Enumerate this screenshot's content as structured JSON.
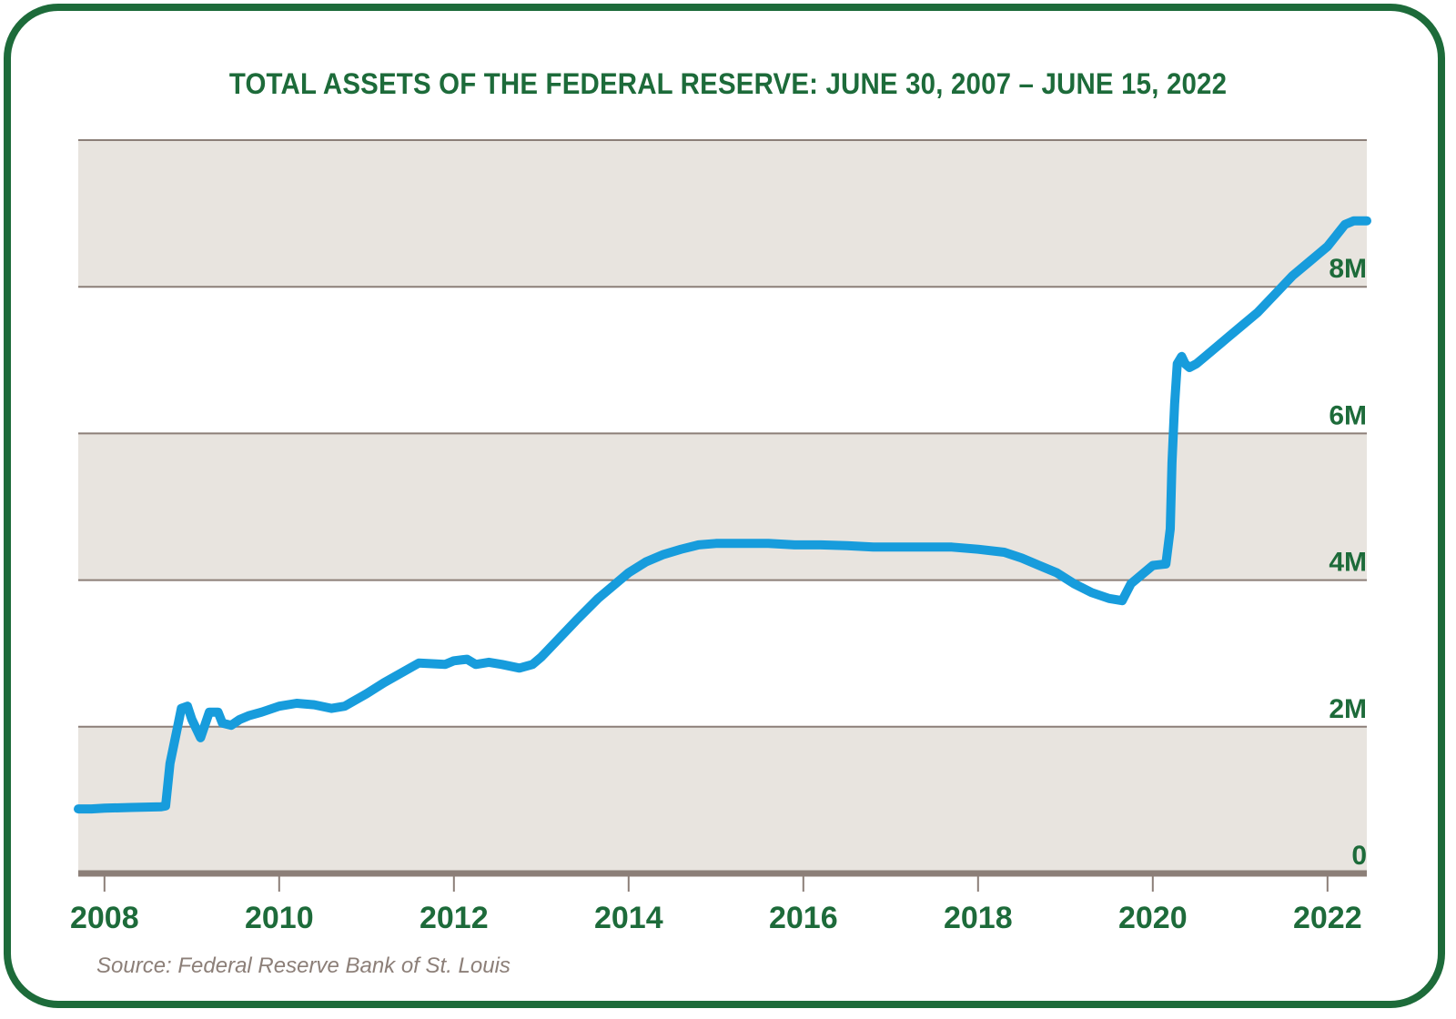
{
  "chart_data": {
    "type": "line",
    "title": "TOTAL ASSETS OF THE FEDERAL RESERVE: JUNE 30, 2007 – JUNE 15, 2022",
    "xlabel": "",
    "ylabel": "",
    "xlim": [
      2007.7,
      2022.45
    ],
    "ylim": [
      0,
      10
    ],
    "y_ticks": [
      0,
      2,
      4,
      6,
      8
    ],
    "y_tick_labels": [
      "0",
      "2M",
      "4M",
      "6M",
      "8M"
    ],
    "x_ticks": [
      2008,
      2010,
      2012,
      2014,
      2016,
      2018,
      2020,
      2022
    ],
    "x_tick_labels": [
      "2008",
      "2010",
      "2012",
      "2014",
      "2016",
      "2018",
      "2020",
      "2022"
    ],
    "grid": true,
    "legend": "none",
    "colors": {
      "line": "#179cdc",
      "band_shaded": "#e8e4df",
      "band_white": "#ffffff",
      "gridline": "#8c7f78",
      "text": "#1d6b3a",
      "frame": "#1d6b3a",
      "source": "#8c7f78"
    },
    "series": [
      {
        "x": [
          2007.7,
          2007.85,
          2008.0,
          2008.3,
          2008.65,
          2008.7,
          2008.75,
          2008.82,
          2008.88,
          2008.95,
          2009.0,
          2009.1,
          2009.2,
          2009.3,
          2009.35,
          2009.45,
          2009.55,
          2009.65,
          2009.8,
          2010.0,
          2010.2,
          2010.4,
          2010.6,
          2010.75,
          2011.0,
          2011.2,
          2011.6,
          2011.75,
          2011.9,
          2012.0,
          2012.15,
          2012.25,
          2012.4,
          2012.55,
          2012.75,
          2012.9,
          2013.0,
          2013.2,
          2013.4,
          2013.65,
          2013.8,
          2014.0,
          2014.2,
          2014.4,
          2014.6,
          2014.8,
          2015.0,
          2015.3,
          2015.6,
          2015.9,
          2016.2,
          2016.5,
          2016.8,
          2017.1,
          2017.4,
          2017.7,
          2018.0,
          2018.3,
          2018.5,
          2018.7,
          2018.9,
          2019.1,
          2019.3,
          2019.5,
          2019.65,
          2019.75,
          2019.95,
          2020.0,
          2020.15,
          2020.2,
          2020.22,
          2020.25,
          2020.28,
          2020.33,
          2020.37,
          2020.42,
          2020.5,
          2020.6,
          2020.75,
          2020.85,
          2021.0,
          2021.2,
          2021.4,
          2021.6,
          2021.8,
          2021.9,
          2022.0,
          2022.1,
          2022.2,
          2022.3,
          2022.45
        ],
        "y": [
          0.88,
          0.88,
          0.89,
          0.9,
          0.91,
          0.92,
          1.5,
          1.9,
          2.25,
          2.28,
          2.1,
          1.85,
          2.2,
          2.2,
          2.05,
          2.02,
          2.1,
          2.15,
          2.2,
          2.28,
          2.32,
          2.3,
          2.25,
          2.28,
          2.45,
          2.6,
          2.87,
          2.86,
          2.85,
          2.9,
          2.92,
          2.85,
          2.88,
          2.85,
          2.8,
          2.85,
          2.95,
          3.2,
          3.45,
          3.75,
          3.9,
          4.1,
          4.25,
          4.35,
          4.42,
          4.48,
          4.5,
          4.5,
          4.5,
          4.48,
          4.48,
          4.47,
          4.45,
          4.45,
          4.45,
          4.45,
          4.42,
          4.38,
          4.3,
          4.2,
          4.1,
          3.95,
          3.83,
          3.75,
          3.72,
          3.95,
          4.15,
          4.2,
          4.22,
          4.7,
          5.6,
          6.4,
          6.95,
          7.05,
          6.95,
          6.9,
          6.95,
          7.05,
          7.2,
          7.3,
          7.45,
          7.65,
          7.9,
          8.15,
          8.35,
          8.45,
          8.55,
          8.7,
          8.85,
          8.9,
          8.9
        ]
      }
    ]
  },
  "source": "Source: Federal Reserve Bank of St. Louis"
}
